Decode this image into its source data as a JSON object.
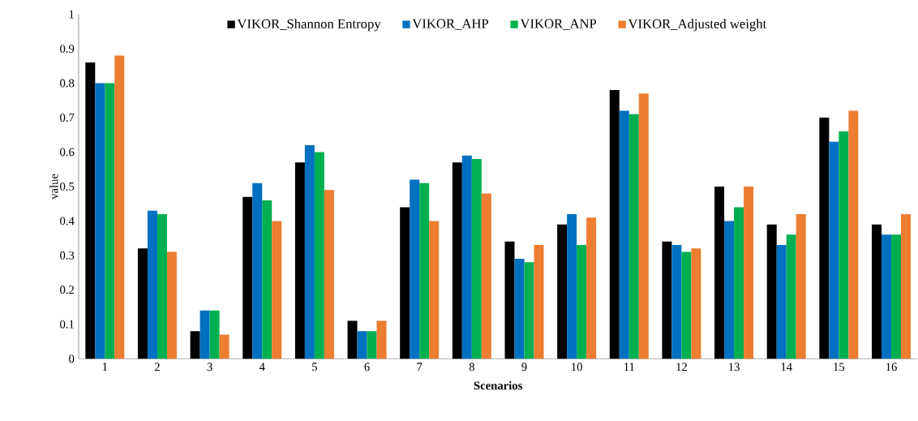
{
  "chart_data": {
    "type": "bar",
    "xlabel": "Scenarios",
    "ylabel": "value",
    "categories": [
      "1",
      "2",
      "3",
      "4",
      "5",
      "6",
      "7",
      "8",
      "9",
      "10",
      "11",
      "12",
      "13",
      "14",
      "15",
      "16"
    ],
    "series": [
      {
        "name": "VIKOR_Shannon Entropy",
        "color": "#000000",
        "values": [
          0.86,
          0.32,
          0.08,
          0.47,
          0.57,
          0.11,
          0.44,
          0.57,
          0.34,
          0.39,
          0.78,
          0.34,
          0.5,
          0.39,
          0.7,
          0.39
        ]
      },
      {
        "name": "VIKOR_AHP",
        "color": "#0070c0",
        "values": [
          0.8,
          0.43,
          0.14,
          0.51,
          0.62,
          0.08,
          0.52,
          0.59,
          0.29,
          0.42,
          0.72,
          0.33,
          0.4,
          0.33,
          0.63,
          0.36
        ]
      },
      {
        "name": "VIKOR_ANP",
        "color": "#00b050",
        "values": [
          0.8,
          0.42,
          0.14,
          0.46,
          0.6,
          0.08,
          0.51,
          0.58,
          0.28,
          0.33,
          0.71,
          0.31,
          0.44,
          0.36,
          0.66,
          0.36
        ]
      },
      {
        "name": "VIKOR_Adjusted weight",
        "color": "#ed7d31",
        "values": [
          0.88,
          0.31,
          0.07,
          0.4,
          0.49,
          0.11,
          0.4,
          0.48,
          0.33,
          0.41,
          0.77,
          0.32,
          0.5,
          0.42,
          0.72,
          0.42
        ]
      }
    ],
    "ylim": [
      0,
      1
    ],
    "yticks": [
      0,
      0.1,
      0.2,
      0.3,
      0.4,
      0.5,
      0.6,
      0.7,
      0.8,
      0.9,
      1
    ],
    "grid": false,
    "legend": "top"
  }
}
